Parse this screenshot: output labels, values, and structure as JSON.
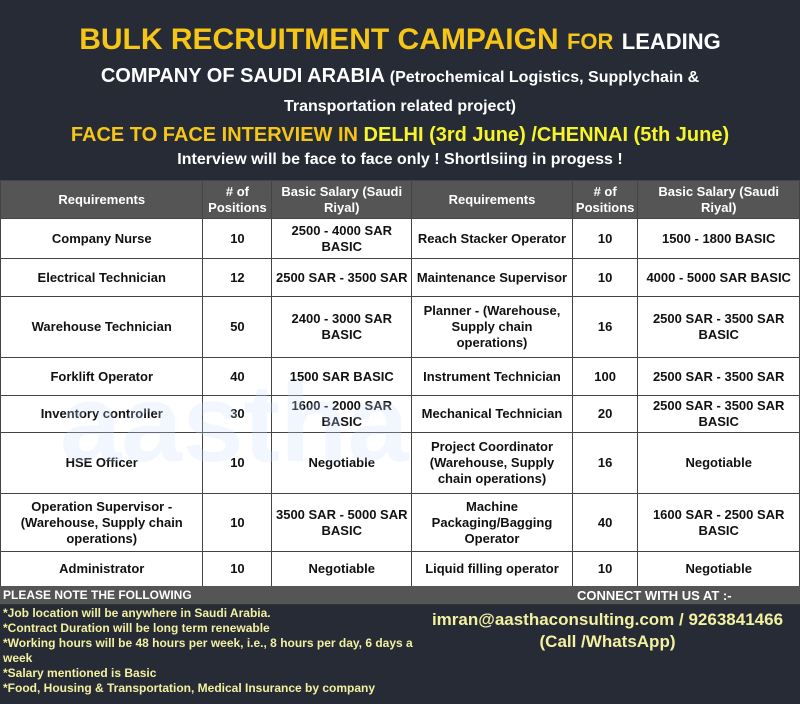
{
  "header": {
    "title_main": "BULK RECRUITMENT CAMPAIGN",
    "title_for": "FOR",
    "title_leading": "LEADING",
    "line2_main": "COMPANY OF SAUDI ARABIA",
    "line2_note": "(Petrochemical Logistics, Supplychain &",
    "line3": "Transportation related project)",
    "line4_a": "FACE TO FACE INTERVIEW IN",
    "line4_b": "DELHI (3rd June) /CHENNAI (5th June)",
    "line5": "Interview will be face to face only ! Shortlsiing in progess !"
  },
  "table": {
    "headers": [
      "Requirements",
      "# of Positions",
      "Basic Salary (Saudi Riyal)",
      "Requirements",
      "# of Positions",
      "Basic Salary (Saudi Riyal)"
    ],
    "rows": [
      [
        "Company Nurse",
        "10",
        "2500 - 4000 SAR BASIC",
        "Reach Stacker Operator",
        "10",
        "1500  - 1800 BASIC"
      ],
      [
        "Electrical Technician",
        "12",
        "2500 SAR - 3500 SAR",
        "Maintenance Supervisor",
        "10",
        "4000 - 5000 SAR BASIC"
      ],
      [
        "Warehouse Technician",
        "50",
        "2400 - 3000 SAR BASIC",
        "Planner - (Warehouse, Supply chain operations)",
        "16",
        "2500 SAR - 3500 SAR BASIC"
      ],
      [
        "Forklift Operator",
        "40",
        "1500 SAR BASIC",
        "Instrument Technician",
        "100",
        "2500 SAR - 3500 SAR"
      ],
      [
        "Inventory controller",
        "30",
        "1600 - 2000 SAR BASIC",
        "Mechanical Technician",
        "20",
        "2500 SAR - 3500 SAR BASIC"
      ],
      [
        "HSE Officer",
        "10",
        "Negotiable",
        "Project Coordinator (Warehouse, Supply chain operations)",
        "16",
        "Negotiable"
      ],
      [
        "Operation Supervisor - (Warehouse, Supply chain operations)",
        "10",
        "3500 SAR - 5000 SAR BASIC",
        "Machine Packaging/Bagging Operator",
        "40",
        "1600 SAR - 2500 SAR BASIC"
      ],
      [
        "Administrator",
        "10",
        "Negotiable",
        "Liquid filling operator",
        "10",
        "Negotiable"
      ]
    ]
  },
  "watermark": "aastha consulting",
  "footer": {
    "notes_title": "PLEASE NOTE THE FOLLOWING",
    "connect_title": "CONNECT WITH US AT :-",
    "notes": [
      "*Job location will be anywhere in Saudi Arabia.",
      "*Contract Duration will be long term renewable",
      "*Working hours will be 48 hours per week, i.e., 8 hours per day, 6 days a week",
      "*Salary mentioned is Basic",
      "*Food, Housing & Transportation, Medical Insurance by company"
    ],
    "contact_line": "imran@aasthaconsulting.com / 9263841466",
    "contact_note": "(Call /WhatsApp)"
  }
}
